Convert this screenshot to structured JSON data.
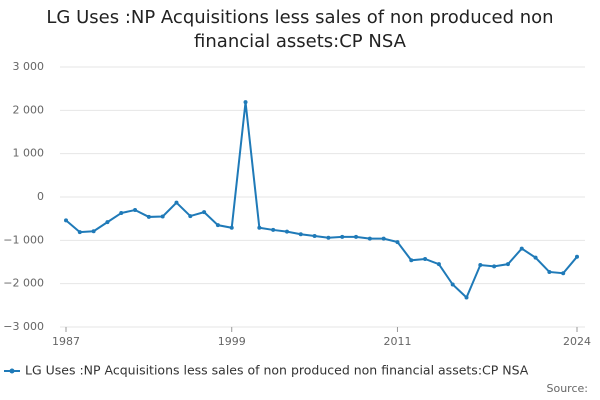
{
  "chart_data": {
    "type": "line",
    "title": "LG Uses :NP Acquisitions less sales of non produced non financial assets:CP NSA",
    "source": "Source:",
    "x": [
      1987,
      1988,
      1989,
      1990,
      1991,
      1992,
      1993,
      1994,
      1995,
      1996,
      1997,
      1998,
      1999,
      2000,
      2001,
      2002,
      2003,
      2004,
      2005,
      2006,
      2007,
      2008,
      2009,
      2010,
      2011,
      2012,
      2013,
      2014,
      2015,
      2016,
      2017,
      2018,
      2019,
      2020,
      2021,
      2022,
      2023,
      2024
    ],
    "series": [
      {
        "name": "LG Uses :NP Acquisitions less sales of non produced non financial assets:CP NSA",
        "color": "#1f7ab8",
        "values": [
          -540,
          -810,
          -790,
          -580,
          -370,
          -300,
          -460,
          -450,
          -130,
          -440,
          -350,
          -650,
          -710,
          2190,
          -710,
          -760,
          -800,
          -860,
          -900,
          -940,
          -920,
          -920,
          -960,
          -960,
          -1040,
          -1460,
          -1430,
          -1550,
          -2020,
          -2320,
          -1570,
          -1600,
          -1550,
          -1190,
          -1400,
          -1730,
          -1760,
          -1380
        ]
      }
    ],
    "xlim": [
      1987,
      2024
    ],
    "xticks": [
      1987,
      1999,
      2011,
      2024
    ],
    "ylim": [
      -3000,
      3000
    ],
    "yticks": [
      {
        "value": -3000,
        "label": "−3 000"
      },
      {
        "value": -2000,
        "label": "−2 000"
      },
      {
        "value": -1000,
        "label": "−1 000"
      },
      0,
      {
        "value": 1000,
        "label": "1 000"
      },
      {
        "value": 2000,
        "label": "2 000"
      },
      {
        "value": 3000,
        "label": "3 000"
      }
    ],
    "grid": true
  }
}
